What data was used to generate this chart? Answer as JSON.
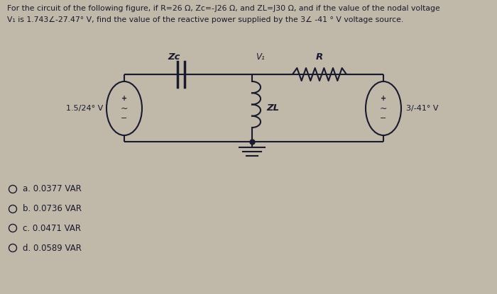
{
  "bg_color": "#c0b8a8",
  "title_lines": [
    "For the circuit of the following figure, if R=26 Ω, Zc=-J26 Ω, and ZL=J30 Ω, and if the value of the nodal voltage",
    "V₁ is 1.743∠-27.47° V, find the value of the reactive power supplied by the 3∠ -41 ° V voltage source."
  ],
  "choices": [
    "a. 0.0377 VAR",
    "b. 0.0736 VAR",
    "c. 0.0471 VAR",
    "d. 0.0589 VAR"
  ],
  "circuit": {
    "left_source_label": "1.5/24° V",
    "right_source_label": "3/-41° V",
    "zc_label": "Zc",
    "r_label": "R",
    "zl_label": "ZL",
    "v1_label": "V₁"
  },
  "text_color": "#1a1a2e",
  "title_fontsize": 7.8,
  "choice_fontsize": 8.5,
  "label_fontsize": 9.5
}
